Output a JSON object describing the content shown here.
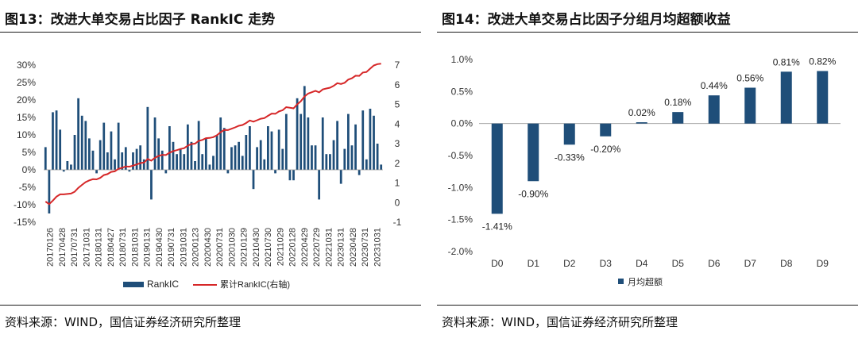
{
  "charts": [
    {
      "title": "图13：改进大单交易占比因子 RankIC 走势",
      "source": "资料来源：WIND，国信证券经济研究所整理"
    },
    {
      "title": "图14：改进大单交易占比因子分组月均超额收益",
      "source": "资料来源：WIND，国信证券经济研究所整理"
    }
  ],
  "chart_data": [
    {
      "type": "bar",
      "x_ticks": [
        "20170126",
        "20170428",
        "20170731",
        "20171031",
        "20180131",
        "20180427",
        "20180731",
        "20181031",
        "20190131",
        "20190430",
        "20190731",
        "20191031",
        "20200123",
        "20200430",
        "20200731",
        "20201030",
        "20210129",
        "20210430",
        "20210730",
        "20211029",
        "20220128",
        "20220429",
        "20220729",
        "20221031",
        "20230131",
        "20230428",
        "20230731",
        "20231031"
      ],
      "series": [
        {
          "name": "RankIC",
          "axis": "left",
          "type": "bar",
          "color": "#1f4e79",
          "values": [
            6.5,
            -12.5,
            16.5,
            17,
            11.5,
            -0.5,
            2.5,
            1.5,
            10,
            20.5,
            15.5,
            14,
            9,
            5.5,
            -1,
            8.5,
            13.5,
            5,
            11,
            3,
            13.5,
            5,
            6.5,
            -0.5,
            5,
            6,
            7,
            3,
            18,
            -8.5,
            15,
            9,
            5.5,
            -1,
            12.5,
            8,
            4.5,
            6,
            4.5,
            13,
            8,
            2.5,
            14,
            4.5,
            9,
            1.5,
            4,
            10,
            15,
            12,
            -1,
            6.5,
            7,
            8,
            4,
            10,
            12.5,
            -5.5,
            6.5,
            8.5,
            3,
            12.5,
            11,
            -1,
            11.5,
            6,
            16,
            -3,
            -3,
            20.5,
            16,
            24,
            15,
            7,
            7,
            -8.5,
            15,
            4.5,
            4.5,
            8.5,
            14,
            -4,
            6,
            16,
            7,
            13,
            -1.5,
            17,
            3,
            17.5,
            15.5,
            7.5,
            1.5
          ]
        },
        {
          "name": "累计RankIC(右轴)",
          "axis": "right",
          "type": "line",
          "color": "#d62728",
          "values": [
            0.05,
            -0.08,
            0.1,
            0.3,
            0.42,
            0.42,
            0.44,
            0.46,
            0.55,
            0.75,
            0.9,
            1.04,
            1.13,
            1.19,
            1.18,
            1.26,
            1.4,
            1.45,
            1.56,
            1.59,
            1.72,
            1.77,
            1.84,
            1.83,
            1.88,
            1.94,
            2.01,
            2.04,
            2.22,
            2.13,
            2.28,
            2.37,
            2.43,
            2.42,
            2.54,
            2.62,
            2.67,
            2.73,
            2.77,
            2.9,
            2.98,
            3.0,
            3.14,
            3.19,
            3.28,
            3.29,
            3.33,
            3.43,
            3.58,
            3.7,
            3.69,
            3.76,
            3.83,
            3.91,
            3.95,
            4.05,
            4.18,
            4.12,
            4.19,
            4.27,
            4.3,
            4.42,
            4.53,
            4.52,
            4.64,
            4.7,
            4.86,
            4.83,
            4.8,
            5.0,
            5.16,
            5.4,
            5.55,
            5.62,
            5.69,
            5.61,
            5.76,
            5.81,
            5.85,
            5.94,
            6.08,
            6.04,
            6.1,
            6.26,
            6.33,
            6.46,
            6.45,
            6.62,
            6.65,
            6.82,
            6.98,
            7.05,
            7.07
          ]
        }
      ],
      "ylim_left": [
        -0.15,
        0.3
      ],
      "ylim_right": [
        -1,
        7
      ],
      "left_ticks": [
        "-15%",
        "-10%",
        "-5%",
        "0%",
        "5%",
        "10%",
        "15%",
        "20%",
        "25%",
        "30%"
      ],
      "right_ticks": [
        "-1",
        "0",
        "1",
        "2",
        "3",
        "4",
        "5",
        "6",
        "7"
      ],
      "legend": [
        "RankIC",
        "累计RankIC(右轴)"
      ],
      "legend_position": "bottom"
    },
    {
      "type": "bar",
      "categories": [
        "D0",
        "D1",
        "D2",
        "D3",
        "D4",
        "D5",
        "D6",
        "D7",
        "D8",
        "D9"
      ],
      "series": [
        {
          "name": "月均超额",
          "values": [
            -1.41,
            -0.9,
            -0.33,
            -0.2,
            0.02,
            0.18,
            0.44,
            0.56,
            0.81,
            0.82
          ]
        }
      ],
      "data_labels": [
        "-1.41%",
        "-0.90%",
        "-0.33%",
        "-0.20%",
        "0.02%",
        "0.18%",
        "0.44%",
        "0.56%",
        "0.81%",
        "0.82%"
      ],
      "ylim": [
        -2.0,
        1.0
      ],
      "y_ticks": [
        "-2.0%",
        "-1.5%",
        "-1.0%",
        "-0.5%",
        "0.0%",
        "0.5%",
        "1.0%"
      ],
      "bar_color": "#1f4e79",
      "legend": [
        "月均超额"
      ],
      "legend_position": "bottom"
    }
  ]
}
